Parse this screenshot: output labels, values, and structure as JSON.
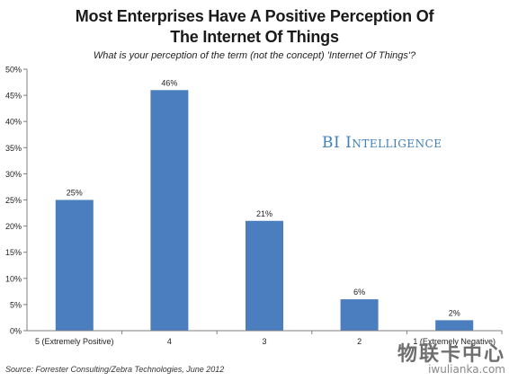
{
  "title_line1": "Most Enterprises Have A Positive Perception Of",
  "title_line2": "The Internet Of Things",
  "subtitle": "What is your perception of the term (not the concept) 'Internet Of Things'?",
  "source": "Source: Forrester Consulting/Zebra Technologies, June 2012",
  "watermark": "BI Intelligence",
  "brand_cn": "物联卡中心",
  "brand_url": "iwulianka.com",
  "colors": {
    "bar": "#4a7ebf",
    "axis": "#7f7f7f",
    "grid": "#cfcfcf"
  },
  "chart_data": {
    "type": "bar",
    "title": "Most Enterprises Have A Positive Perception Of The Internet Of Things",
    "subtitle": "What is your perception of the term (not the concept) 'Internet Of Things'?",
    "categories": [
      "5 (Extremely Positive)",
      "4",
      "3",
      "2",
      "1 (Extremely Negative)"
    ],
    "values": [
      25,
      46,
      21,
      6,
      2
    ],
    "data_labels": [
      "25%",
      "46%",
      "21%",
      "6%",
      "2%"
    ],
    "xlabel": "",
    "ylabel": "",
    "ylim": [
      0,
      50
    ],
    "yticks": [
      "0%",
      "5%",
      "10%",
      "15%",
      "20%",
      "25%",
      "30%",
      "35%",
      "40%",
      "45%",
      "50%"
    ],
    "grid": false,
    "legend": "none"
  }
}
